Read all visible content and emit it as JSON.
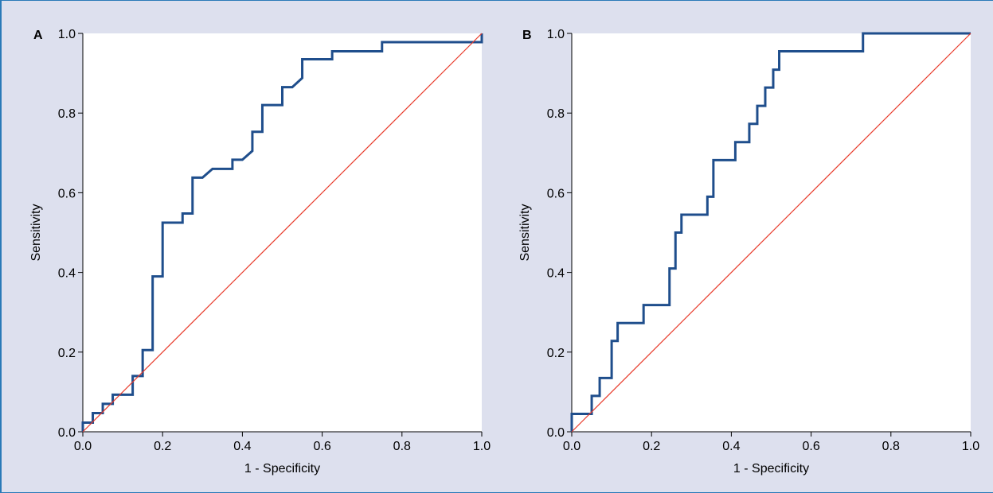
{
  "colors": {
    "background": "#dde0ee",
    "frame": "#2a7ab8",
    "plot_area": "#ffffff",
    "roc_curve": "#1f4e8c",
    "reference_line": "#e83a2a"
  },
  "chart_data": [
    {
      "type": "line",
      "panel_label": "A",
      "xlabel": "1 - Specificity",
      "ylabel": "Sensitivity",
      "xlim": [
        0,
        1
      ],
      "ylim": [
        0,
        1
      ],
      "x_ticks": [
        "0.0",
        "0.2",
        "0.4",
        "0.6",
        "0.8",
        "1.0"
      ],
      "y_ticks": [
        "0.0",
        "0.2",
        "0.4",
        "0.6",
        "0.8",
        "1.0"
      ],
      "grid": false,
      "series": [
        {
          "role": "roc_curve",
          "x": [
            0,
            0,
            0.025,
            0.025,
            0.05,
            0.05,
            0.075,
            0.075,
            0.125,
            0.125,
            0.15,
            0.15,
            0.175,
            0.175,
            0.2,
            0.2,
            0.25,
            0.25,
            0.275,
            0.275,
            0.3,
            0.325,
            0.375,
            0.375,
            0.4,
            0.425,
            0.425,
            0.45,
            0.45,
            0.5,
            0.5,
            0.525,
            0.55,
            0.55,
            0.625,
            0.625,
            0.75,
            0.75,
            1.0,
            1.0
          ],
          "y": [
            0,
            0.023,
            0.023,
            0.047,
            0.047,
            0.07,
            0.07,
            0.093,
            0.093,
            0.14,
            0.14,
            0.205,
            0.205,
            0.39,
            0.39,
            0.525,
            0.525,
            0.548,
            0.548,
            0.638,
            0.638,
            0.66,
            0.66,
            0.683,
            0.683,
            0.705,
            0.753,
            0.753,
            0.82,
            0.82,
            0.865,
            0.865,
            0.888,
            0.935,
            0.935,
            0.955,
            0.955,
            0.978,
            0.978,
            1.0
          ]
        },
        {
          "role": "reference_line",
          "x": [
            0,
            1
          ],
          "y": [
            0,
            1
          ]
        }
      ]
    },
    {
      "type": "line",
      "panel_label": "B",
      "xlabel": "1 - Specificity",
      "ylabel": "Sensitivity",
      "xlim": [
        0,
        1
      ],
      "ylim": [
        0,
        1
      ],
      "x_ticks": [
        "0.0",
        "0.2",
        "0.4",
        "0.6",
        "0.8",
        "1.0"
      ],
      "y_ticks": [
        "0.0",
        "0.2",
        "0.4",
        "0.6",
        "0.8",
        "1.0"
      ],
      "grid": false,
      "series": [
        {
          "role": "roc_curve",
          "x": [
            0,
            0,
            0.05,
            0.05,
            0.07,
            0.07,
            0.1,
            0.1,
            0.115,
            0.115,
            0.18,
            0.18,
            0.245,
            0.245,
            0.26,
            0.26,
            0.275,
            0.275,
            0.34,
            0.34,
            0.355,
            0.355,
            0.41,
            0.41,
            0.445,
            0.445,
            0.465,
            0.465,
            0.485,
            0.485,
            0.505,
            0.505,
            0.52,
            0.52,
            0.535,
            0.535,
            0.73,
            0.73,
            1.0
          ],
          "y": [
            0,
            0.045,
            0.045,
            0.09,
            0.09,
            0.135,
            0.135,
            0.228,
            0.228,
            0.273,
            0.273,
            0.318,
            0.318,
            0.41,
            0.41,
            0.5,
            0.5,
            0.545,
            0.545,
            0.59,
            0.59,
            0.682,
            0.682,
            0.727,
            0.727,
            0.773,
            0.773,
            0.818,
            0.818,
            0.864,
            0.864,
            0.909,
            0.909,
            0.955,
            0.955,
            0.955,
            0.955,
            1.0,
            1.0
          ]
        },
        {
          "role": "reference_line",
          "x": [
            0,
            1
          ],
          "y": [
            0,
            1
          ]
        }
      ]
    }
  ]
}
